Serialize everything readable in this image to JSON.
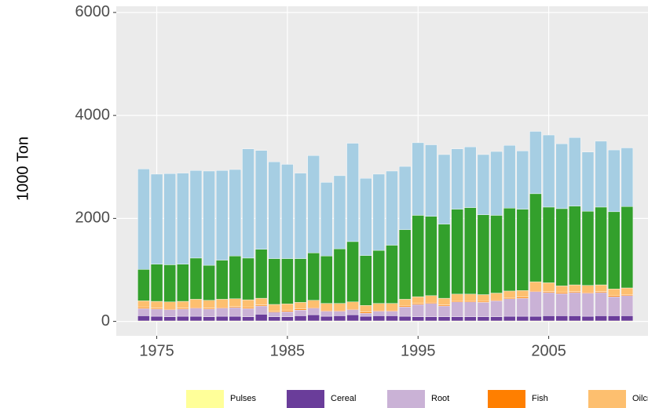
{
  "chart_data": {
    "type": "stacked_bar",
    "y_label": "1000 Ton",
    "x": [
      1974,
      1975,
      1976,
      1977,
      1978,
      1979,
      1980,
      1981,
      1982,
      1983,
      1984,
      1985,
      1986,
      1987,
      1988,
      1989,
      1990,
      1991,
      1992,
      1993,
      1994,
      1995,
      1996,
      1997,
      1998,
      1999,
      2000,
      2001,
      2002,
      2003,
      2004,
      2005,
      2006,
      2007,
      2008,
      2009,
      2010,
      2011
    ],
    "xlim": [
      1971.9,
      2012.6
    ],
    "xticks": [
      1975,
      1985,
      1995,
      2005
    ],
    "ylim": [
      -280,
      6120
    ],
    "yticks": [
      0,
      2000,
      4000,
      6000
    ],
    "grid": true,
    "legend": "bottom",
    "series": [
      {
        "name": "Pulses",
        "color": "#ffff99",
        "values": [
          10,
          10,
          10,
          10,
          10,
          10,
          10,
          10,
          10,
          10,
          10,
          10,
          10,
          10,
          10,
          10,
          10,
          10,
          10,
          10,
          10,
          10,
          10,
          10,
          10,
          10,
          10,
          10,
          10,
          10,
          10,
          10,
          10,
          10,
          10,
          10,
          10,
          10
        ]
      },
      {
        "name": "Cereal",
        "color": "#6a3d9a",
        "values": [
          100,
          90,
          80,
          90,
          90,
          80,
          90,
          90,
          80,
          130,
          80,
          80,
          100,
          120,
          90,
          100,
          120,
          90,
          100,
          100,
          90,
          80,
          80,
          80,
          80,
          80,
          80,
          80,
          90,
          90,
          90,
          100,
          100,
          100,
          90,
          100,
          100,
          100
        ]
      },
      {
        "name": "Root",
        "color": "#cab2d6",
        "values": [
          140,
          140,
          140,
          140,
          160,
          150,
          160,
          170,
          160,
          160,
          90,
          100,
          110,
          130,
          100,
          90,
          100,
          60,
          90,
          90,
          180,
          240,
          260,
          210,
          290,
          290,
          280,
          310,
          340,
          350,
          480,
          450,
          430,
          450,
          450,
          450,
          370,
          390
        ]
      },
      {
        "name": "Fish",
        "color": "#ff7f00",
        "values": [
          20,
          20,
          20,
          20,
          20,
          20,
          20,
          20,
          20,
          20,
          20,
          20,
          20,
          20,
          20,
          20,
          20,
          20,
          20,
          20,
          20,
          20,
          20,
          20,
          20,
          20,
          20,
          20,
          20,
          20,
          20,
          20,
          20,
          20,
          20,
          20,
          20,
          20
        ]
      },
      {
        "name": "Oilcrop",
        "color": "#fdbf6f",
        "values": [
          130,
          130,
          130,
          130,
          150,
          150,
          150,
          150,
          150,
          130,
          130,
          130,
          130,
          130,
          130,
          130,
          130,
          130,
          130,
          130,
          130,
          130,
          130,
          130,
          130,
          130,
          130,
          130,
          130,
          130,
          170,
          170,
          130,
          130,
          130,
          130,
          130,
          130
        ]
      },
      {
        "color": "#33a02c",
        "values": [
          610,
          720,
          720,
          720,
          800,
          680,
          760,
          830,
          810,
          950,
          890,
          880,
          850,
          920,
          920,
          1060,
          1170,
          970,
          1030,
          1130,
          1350,
          1580,
          1540,
          1440,
          1650,
          1680,
          1550,
          1510,
          1610,
          1580,
          1710,
          1470,
          1500,
          1530,
          1440,
          1510,
          1500,
          1580
        ]
      },
      {
        "color": "#a6cee3",
        "values": [
          1950,
          1750,
          1770,
          1770,
          1700,
          1830,
          1740,
          1680,
          2120,
          1920,
          1880,
          1830,
          1660,
          1890,
          1430,
          1420,
          1910,
          1500,
          1480,
          1440,
          1230,
          1410,
          1390,
          1350,
          1170,
          1180,
          1170,
          1240,
          1220,
          1130,
          1210,
          1400,
          1260,
          1330,
          1150,
          1280,
          1200,
          1140
        ]
      }
    ]
  }
}
